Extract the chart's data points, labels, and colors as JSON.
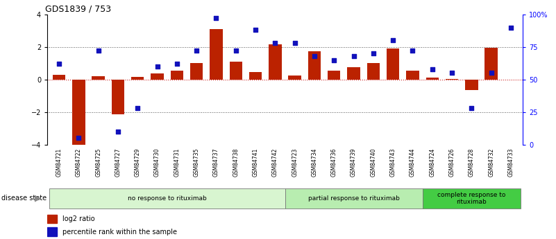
{
  "title": "GDS1839 / 753",
  "samples": [
    "GSM84721",
    "GSM84722",
    "GSM84725",
    "GSM84727",
    "GSM84729",
    "GSM84730",
    "GSM84731",
    "GSM84735",
    "GSM84737",
    "GSM84738",
    "GSM84741",
    "GSM84742",
    "GSM84723",
    "GSM84734",
    "GSM84736",
    "GSM84739",
    "GSM84740",
    "GSM84743",
    "GSM84744",
    "GSM84724",
    "GSM84726",
    "GSM84728",
    "GSM84732",
    "GSM84733"
  ],
  "log2_ratio": [
    0.3,
    -4.2,
    0.2,
    -2.15,
    0.15,
    0.35,
    0.55,
    1.0,
    3.1,
    1.1,
    0.45,
    2.15,
    0.25,
    1.75,
    0.55,
    0.75,
    1.0,
    1.9,
    0.55,
    0.1,
    0.05,
    -0.65,
    1.95,
    0.0
  ],
  "percentile": [
    62,
    5,
    72,
    10,
    28,
    60,
    62,
    72,
    97,
    72,
    88,
    78,
    78,
    68,
    65,
    68,
    70,
    80,
    72,
    58,
    55,
    28,
    55,
    90
  ],
  "groups": [
    {
      "label": "no response to rituximab",
      "start": 0,
      "end": 11,
      "color": "#d8f5d0"
    },
    {
      "label": "partial response to rituximab",
      "start": 12,
      "end": 18,
      "color": "#b8edb0"
    },
    {
      "label": "complete response to\nrituximab",
      "start": 19,
      "end": 23,
      "color": "#44cc44"
    }
  ],
  "bar_color": "#bb2200",
  "dot_color": "#1111bb",
  "ylim_left": [
    -4,
    4
  ],
  "ylim_right": [
    0,
    100
  ],
  "yticks_left": [
    -4,
    -2,
    0,
    2,
    4
  ],
  "ytick_labels_right": [
    "0",
    "25",
    "50",
    "75",
    "100%"
  ],
  "zero_line_color": "#cc2222",
  "grid_dotted_color": "#555555",
  "background_color": "#ffffff",
  "tick_area_color": "#bbbbbb",
  "group_border_color": "#777777"
}
